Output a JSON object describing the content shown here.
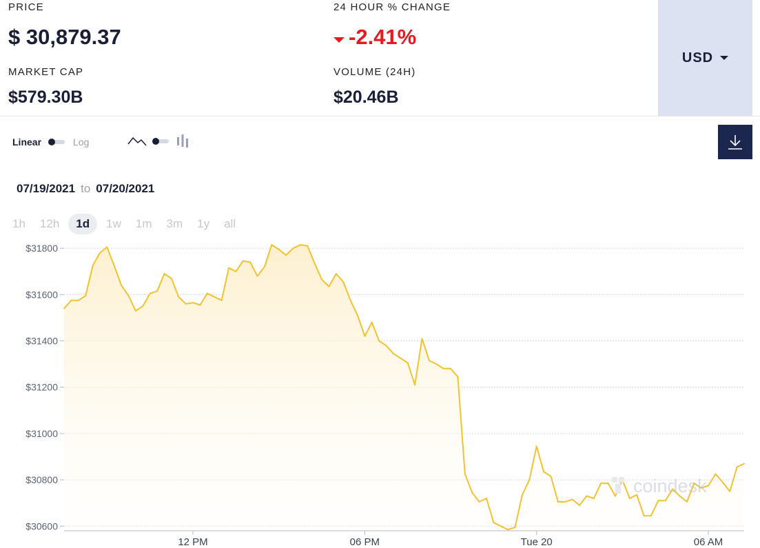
{
  "stats": {
    "price_label": "PRICE",
    "price_value": "$ 30,879.37",
    "change_label": "24 HOUR % CHANGE",
    "change_value": "-2.41%",
    "market_cap_label": "MARKET CAP",
    "market_cap_value": "$579.30B",
    "volume_label": "VOLUME (24H)",
    "volume_value": "$20.46B"
  },
  "currency": {
    "selected": "USD"
  },
  "controls": {
    "scale_linear": "Linear",
    "scale_log": "Log",
    "chart_type_icons": [
      "line-chart-icon",
      "candlestick-chart-icon"
    ],
    "download_icon": "download-icon"
  },
  "date_range": {
    "from": "07/19/2021",
    "to_word": "to",
    "to": "07/20/2021"
  },
  "timeframes": [
    "1h",
    "12h",
    "1d",
    "1w",
    "1m",
    "3m",
    "1y",
    "all"
  ],
  "active_timeframe": "1d",
  "watermark": "coindesk",
  "colors": {
    "line": "#f5c22e",
    "fill_top": "#fdf0cf",
    "accent_negative": "#e8191f",
    "currency_bg": "#dde2f3",
    "download_bg": "#1c2750"
  },
  "chart_data": {
    "type": "area",
    "x_start": "07/19/2021 07:30",
    "x_step_minutes": 15,
    "ylim": [
      30580,
      31860
    ],
    "yticks": [
      30600,
      30800,
      31000,
      31200,
      31400,
      31600,
      31800
    ],
    "ytick_labels": [
      "$30600",
      "$30800",
      "$31000",
      "$31200",
      "$31400",
      "$31600",
      "$31800"
    ],
    "xticks": [
      {
        "at": "07/19/2021 12:00",
        "label": "12 PM"
      },
      {
        "at": "07/19/2021 18:00",
        "label": "06 PM"
      },
      {
        "at": "07/20/2021 00:00",
        "label": "Tue 20"
      },
      {
        "at": "07/20/2021 06:00",
        "label": "06 AM"
      }
    ],
    "grid": true,
    "values": [
      31540,
      31575,
      31575,
      31595,
      31725,
      31780,
      31805,
      31725,
      31640,
      31595,
      31530,
      31550,
      31605,
      31615,
      31690,
      31670,
      31590,
      31560,
      31565,
      31555,
      31605,
      31590,
      31575,
      31715,
      31700,
      31745,
      31740,
      31680,
      31720,
      31815,
      31795,
      31770,
      31800,
      31815,
      31810,
      31735,
      31665,
      31635,
      31690,
      31655,
      31575,
      31510,
      31420,
      31480,
      31400,
      31380,
      31345,
      31325,
      31305,
      31210,
      31410,
      31315,
      31300,
      31280,
      31280,
      31245,
      30825,
      30745,
      30705,
      30720,
      30615,
      30600,
      30585,
      30595,
      30735,
      30800,
      30945,
      30835,
      30815,
      30705,
      30705,
      30715,
      30690,
      30730,
      30720,
      30785,
      30785,
      30730,
      30800,
      30720,
      30735,
      30645,
      30645,
      30710,
      30710,
      30760,
      30730,
      30705,
      30785,
      30765,
      30775,
      30825,
      30790,
      30750,
      30855,
      30870
    ]
  }
}
